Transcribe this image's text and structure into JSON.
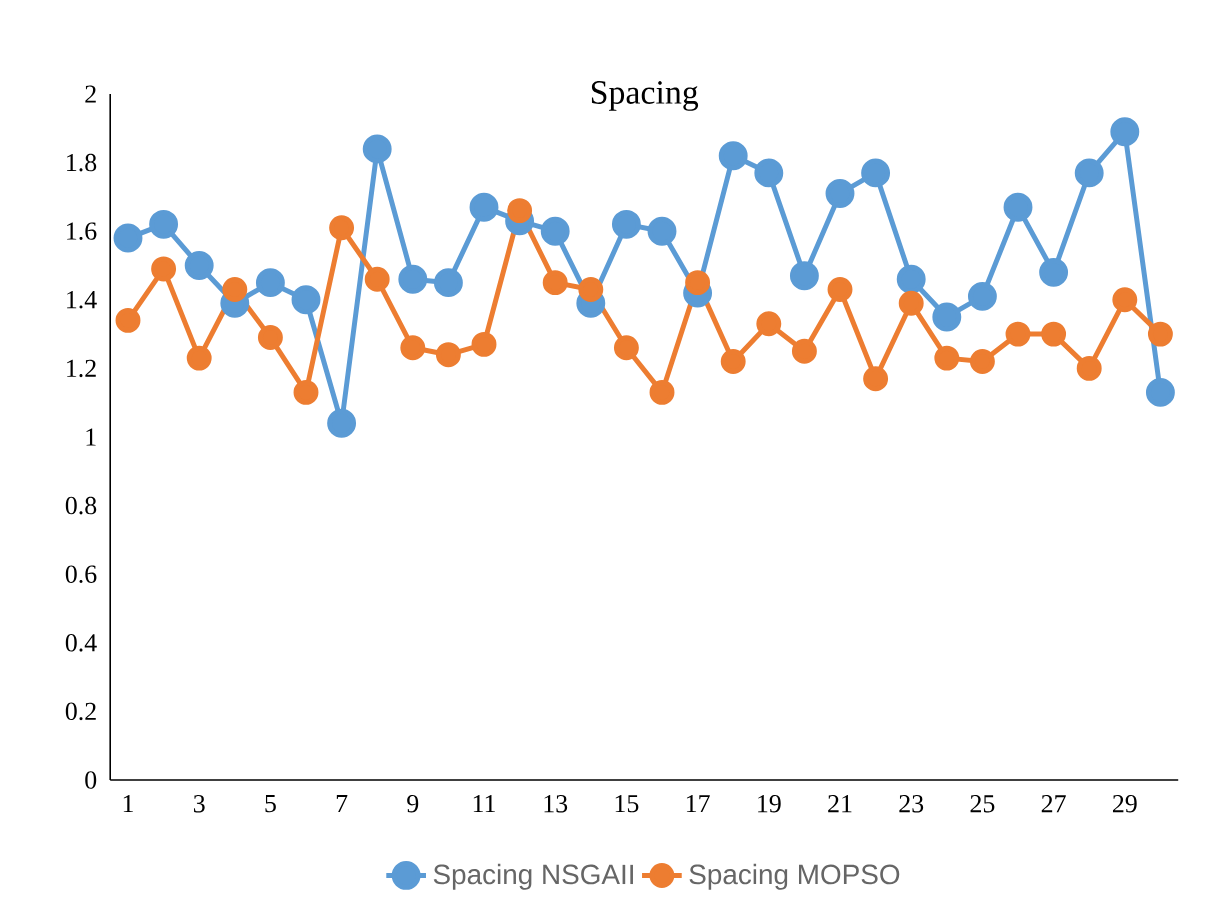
{
  "chart_data": {
    "type": "line",
    "title": "Spacing",
    "categories": [
      "1",
      null,
      "3",
      null,
      "5",
      null,
      "7",
      null,
      "9",
      null,
      "11",
      null,
      "13",
      null,
      "15",
      null,
      "17",
      null,
      "19",
      null,
      "21",
      null,
      "23",
      null,
      "25",
      null,
      "27",
      null,
      "29",
      null
    ],
    "series": [
      {
        "name": "Spacing NSGAII",
        "color": "#5b9bd5",
        "values": [
          1.58,
          1.62,
          1.5,
          1.39,
          1.45,
          1.4,
          1.04,
          1.84,
          1.46,
          1.45,
          1.67,
          1.63,
          1.6,
          1.39,
          1.62,
          1.6,
          1.42,
          1.82,
          1.77,
          1.47,
          1.71,
          1.77,
          1.46,
          1.35,
          1.41,
          1.67,
          1.48,
          1.77,
          1.89,
          1.13
        ]
      },
      {
        "name": "Spacing MOPSO",
        "color": "#ed7d31",
        "values": [
          1.34,
          1.49,
          1.23,
          1.43,
          1.29,
          1.13,
          1.61,
          1.46,
          1.26,
          1.24,
          1.27,
          1.66,
          1.45,
          1.43,
          1.26,
          1.13,
          1.45,
          1.22,
          1.33,
          1.25,
          1.43,
          1.17,
          1.39,
          1.23,
          1.22,
          1.3,
          1.3,
          1.2,
          1.4,
          1.3
        ]
      }
    ],
    "ylim": [
      0,
      2
    ],
    "yticks": [
      0,
      0.2,
      0.4,
      0.6,
      0.8,
      1,
      1.2,
      1.4,
      1.6,
      1.8,
      2
    ],
    "grid": false,
    "legend": "bottom",
    "marker": "circle",
    "line_style": "solid"
  }
}
